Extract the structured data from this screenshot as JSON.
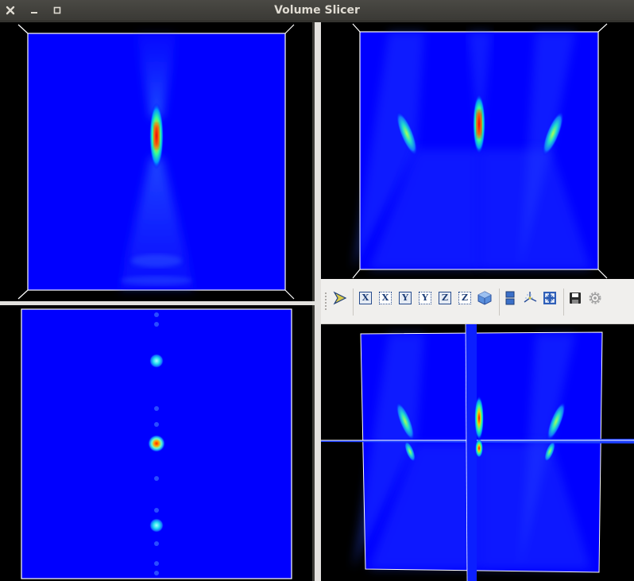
{
  "window": {
    "title": "Volume Slicer"
  },
  "colors": {
    "titlebar_bg": "#3c3b37",
    "view_bg": "#000000",
    "slice_low": "#0000ff",
    "slice_high": "#ff0000",
    "toolbar_bg": "#f0efed"
  },
  "toolbar": {
    "items": [
      {
        "icon": "mayavi-logo-icon"
      },
      {
        "icon": "view-x-plus-icon",
        "label": "X"
      },
      {
        "icon": "view-x-minus-icon",
        "label": "X"
      },
      {
        "icon": "view-y-plus-icon",
        "label": "Y"
      },
      {
        "icon": "view-y-minus-icon",
        "label": "Y"
      },
      {
        "icon": "view-z-plus-icon",
        "label": "Z"
      },
      {
        "icon": "view-z-minus-icon",
        "label": "Z"
      },
      {
        "icon": "isometric-view-icon"
      },
      {
        "icon": "toggle-parallel-projection-icon"
      },
      {
        "icon": "toggle-axes-indicator-icon"
      },
      {
        "icon": "full-screen-icon"
      },
      {
        "icon": "save-scene-icon"
      },
      {
        "icon": "configure-scene-icon"
      }
    ]
  },
  "views": [
    {
      "name": "side-slice-view"
    },
    {
      "name": "front-slice-view"
    },
    {
      "name": "top-slice-view"
    },
    {
      "name": "3d-volume-view"
    }
  ]
}
